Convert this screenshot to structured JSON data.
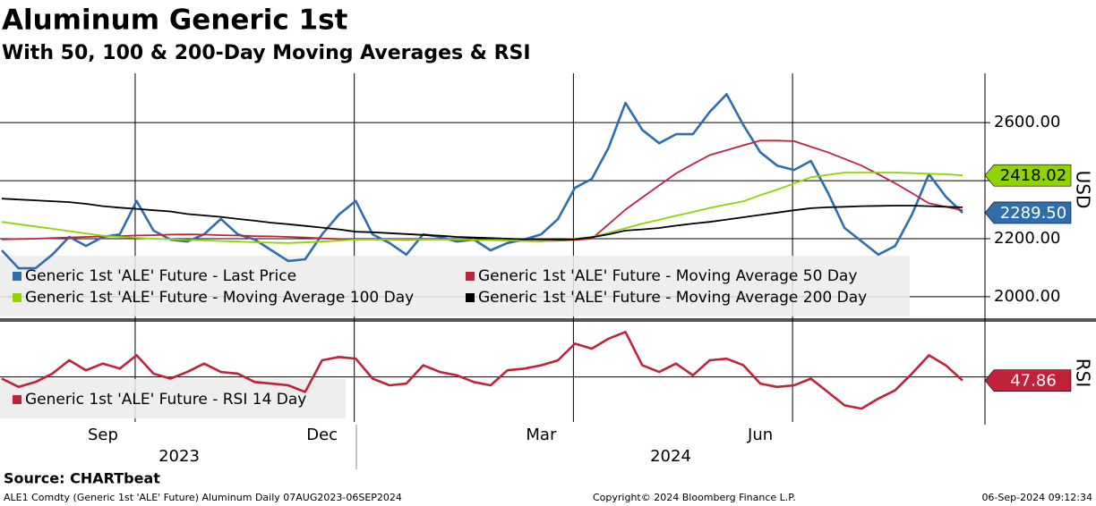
{
  "title": "Aluminum Generic 1st",
  "subtitle": "With 50, 100 & 200-Day Moving Averages & RSI",
  "source": "Source: CHARTbeat",
  "footer_left": "ALE1 Comdty (Generic 1st 'ALE' Future) Aluminum  Daily 07AUG2023-06SEP2024",
  "footer_center": "Copyright© 2024 Bloomberg Finance L.P.",
  "footer_right": "06-Sep-2024 09:12:34",
  "chart_data": [
    {
      "type": "line",
      "ylabel": "USD",
      "categories": [
        null,
        null,
        null,
        null,
        null,
        null,
        "Sep",
        null,
        null,
        null,
        null,
        null,
        null,
        null,
        null,
        null,
        null,
        null,
        null,
        "Dec",
        null,
        null,
        null,
        null,
        null,
        null,
        null,
        null,
        null,
        null,
        null,
        null,
        "Mar",
        null,
        null,
        null,
        null,
        null,
        null,
        null,
        null,
        null,
        null,
        null,
        null,
        "Jun",
        null,
        null,
        null,
        null,
        null,
        null,
        null,
        null,
        null,
        null,
        null,
        null
      ],
      "years": [
        "2023",
        "2024"
      ],
      "ylim": [
        1938,
        2770
      ],
      "yticks": [
        {
          "value": 2000,
          "label": "2000.00"
        },
        {
          "value": 2200,
          "label": "2200.00"
        },
        {
          "value": 2400,
          "label": "2400.00"
        },
        {
          "value": 2600,
          "label": "2600.00"
        }
      ],
      "grid": true,
      "legend": "bottom-left",
      "series": [
        {
          "name": "Generic 1st 'ALE' Future - Last Price",
          "color": "#2f6ead",
          "last_label": "2289.50",
          "values": [
            2160,
            2098,
            2098,
            2145,
            2206,
            2175,
            2206,
            2215,
            2330,
            2228,
            2197,
            2190,
            2215,
            2268,
            2215,
            2197,
            2160,
            2123,
            2129,
            2215,
            2283,
            2330,
            2215,
            2185,
            2145,
            2215,
            2206,
            2190,
            2197,
            2160,
            2185,
            2197,
            2215,
            2268,
            2375,
            2406,
            2514,
            2668,
            2575,
            2529,
            2560,
            2560,
            2637,
            2698,
            2591,
            2498,
            2452,
            2437,
            2468,
            2360,
            2237,
            2191,
            2145,
            2175,
            2283,
            2422,
            2345,
            2289.5
          ]
        },
        {
          "name": "Generic 1st 'ALE' Future - Moving Average 50 Day",
          "color": "#c0223a",
          "values": [
            2197,
            2199,
            2200,
            2202,
            2204,
            2206,
            2208,
            2209,
            2211,
            2212,
            2214,
            2215,
            2214,
            2212,
            2211,
            2209,
            2208,
            2206,
            2204,
            2201,
            2199,
            2197,
            2197,
            2197,
            2196,
            2197,
            2197,
            2197,
            2196,
            2195,
            2194,
            2192,
            2191,
            2193,
            2196,
            2200,
            2250,
            2300,
            2342,
            2384,
            2425,
            2457,
            2488,
            2505,
            2522,
            2538,
            2538,
            2536,
            2517,
            2498,
            2475,
            2452,
            2422,
            2391,
            2357,
            2322,
            2310,
            2298
          ]
        },
        {
          "name": "Generic 1st 'ALE' Future - Moving Average 100 Day",
          "color": "#8fd400",
          "last_label": "2418.02",
          "values": [
            2258,
            2250,
            2242,
            2234,
            2226,
            2218,
            2210,
            2206,
            2203,
            2200,
            2198,
            2196,
            2194,
            2192,
            2190,
            2188,
            2186,
            2185,
            2187,
            2190,
            2193,
            2197,
            2197,
            2197,
            2197,
            2197,
            2197,
            2197,
            2196,
            2195,
            2194,
            2192,
            2191,
            2195,
            2200,
            2206,
            2220,
            2236,
            2252,
            2265,
            2279,
            2292,
            2306,
            2318,
            2329,
            2350,
            2369,
            2390,
            2412,
            2420,
            2428,
            2428,
            2428,
            2428,
            2426,
            2424,
            2422,
            2418.02
          ]
        },
        {
          "name": "Generic 1st 'ALE' Future - Moving Average 200 Day",
          "color": "#000000",
          "values": [
            2338,
            2335,
            2332,
            2329,
            2326,
            2320,
            2312,
            2307,
            2303,
            2298,
            2294,
            2285,
            2280,
            2275,
            2268,
            2262,
            2255,
            2250,
            2244,
            2238,
            2232,
            2224,
            2222,
            2219,
            2216,
            2213,
            2210,
            2206,
            2204,
            2202,
            2200,
            2198,
            2197,
            2197,
            2198,
            2205,
            2215,
            2228,
            2232,
            2237,
            2245,
            2252,
            2258,
            2266,
            2274,
            2282,
            2290,
            2298,
            2305,
            2308,
            2310,
            2312,
            2313,
            2314,
            2314,
            2312,
            2310,
            2308
          ]
        }
      ]
    },
    {
      "type": "line",
      "ylabel": "RSI",
      "ylim": [
        23,
        82
      ],
      "yticks": [
        50
      ],
      "grid": true,
      "legend": "top-left",
      "series": [
        {
          "name": "Generic 1st 'ALE' Future - RSI 14 Day",
          "color": "#c0223a",
          "last_label": "47.86",
          "values": [
            49,
            44,
            47,
            52,
            60,
            54,
            58,
            55,
            63,
            52,
            49,
            53,
            58,
            53,
            52,
            47,
            46,
            45,
            41,
            60,
            62,
            61,
            49,
            45,
            46,
            57,
            53,
            51,
            47,
            45,
            54,
            55,
            57,
            60,
            70,
            67,
            73,
            77,
            57,
            53,
            58,
            51,
            60,
            61,
            57,
            46,
            44,
            45,
            49,
            41,
            33,
            31,
            37,
            42,
            52,
            63,
            57,
            47.86
          ]
        }
      ]
    }
  ]
}
